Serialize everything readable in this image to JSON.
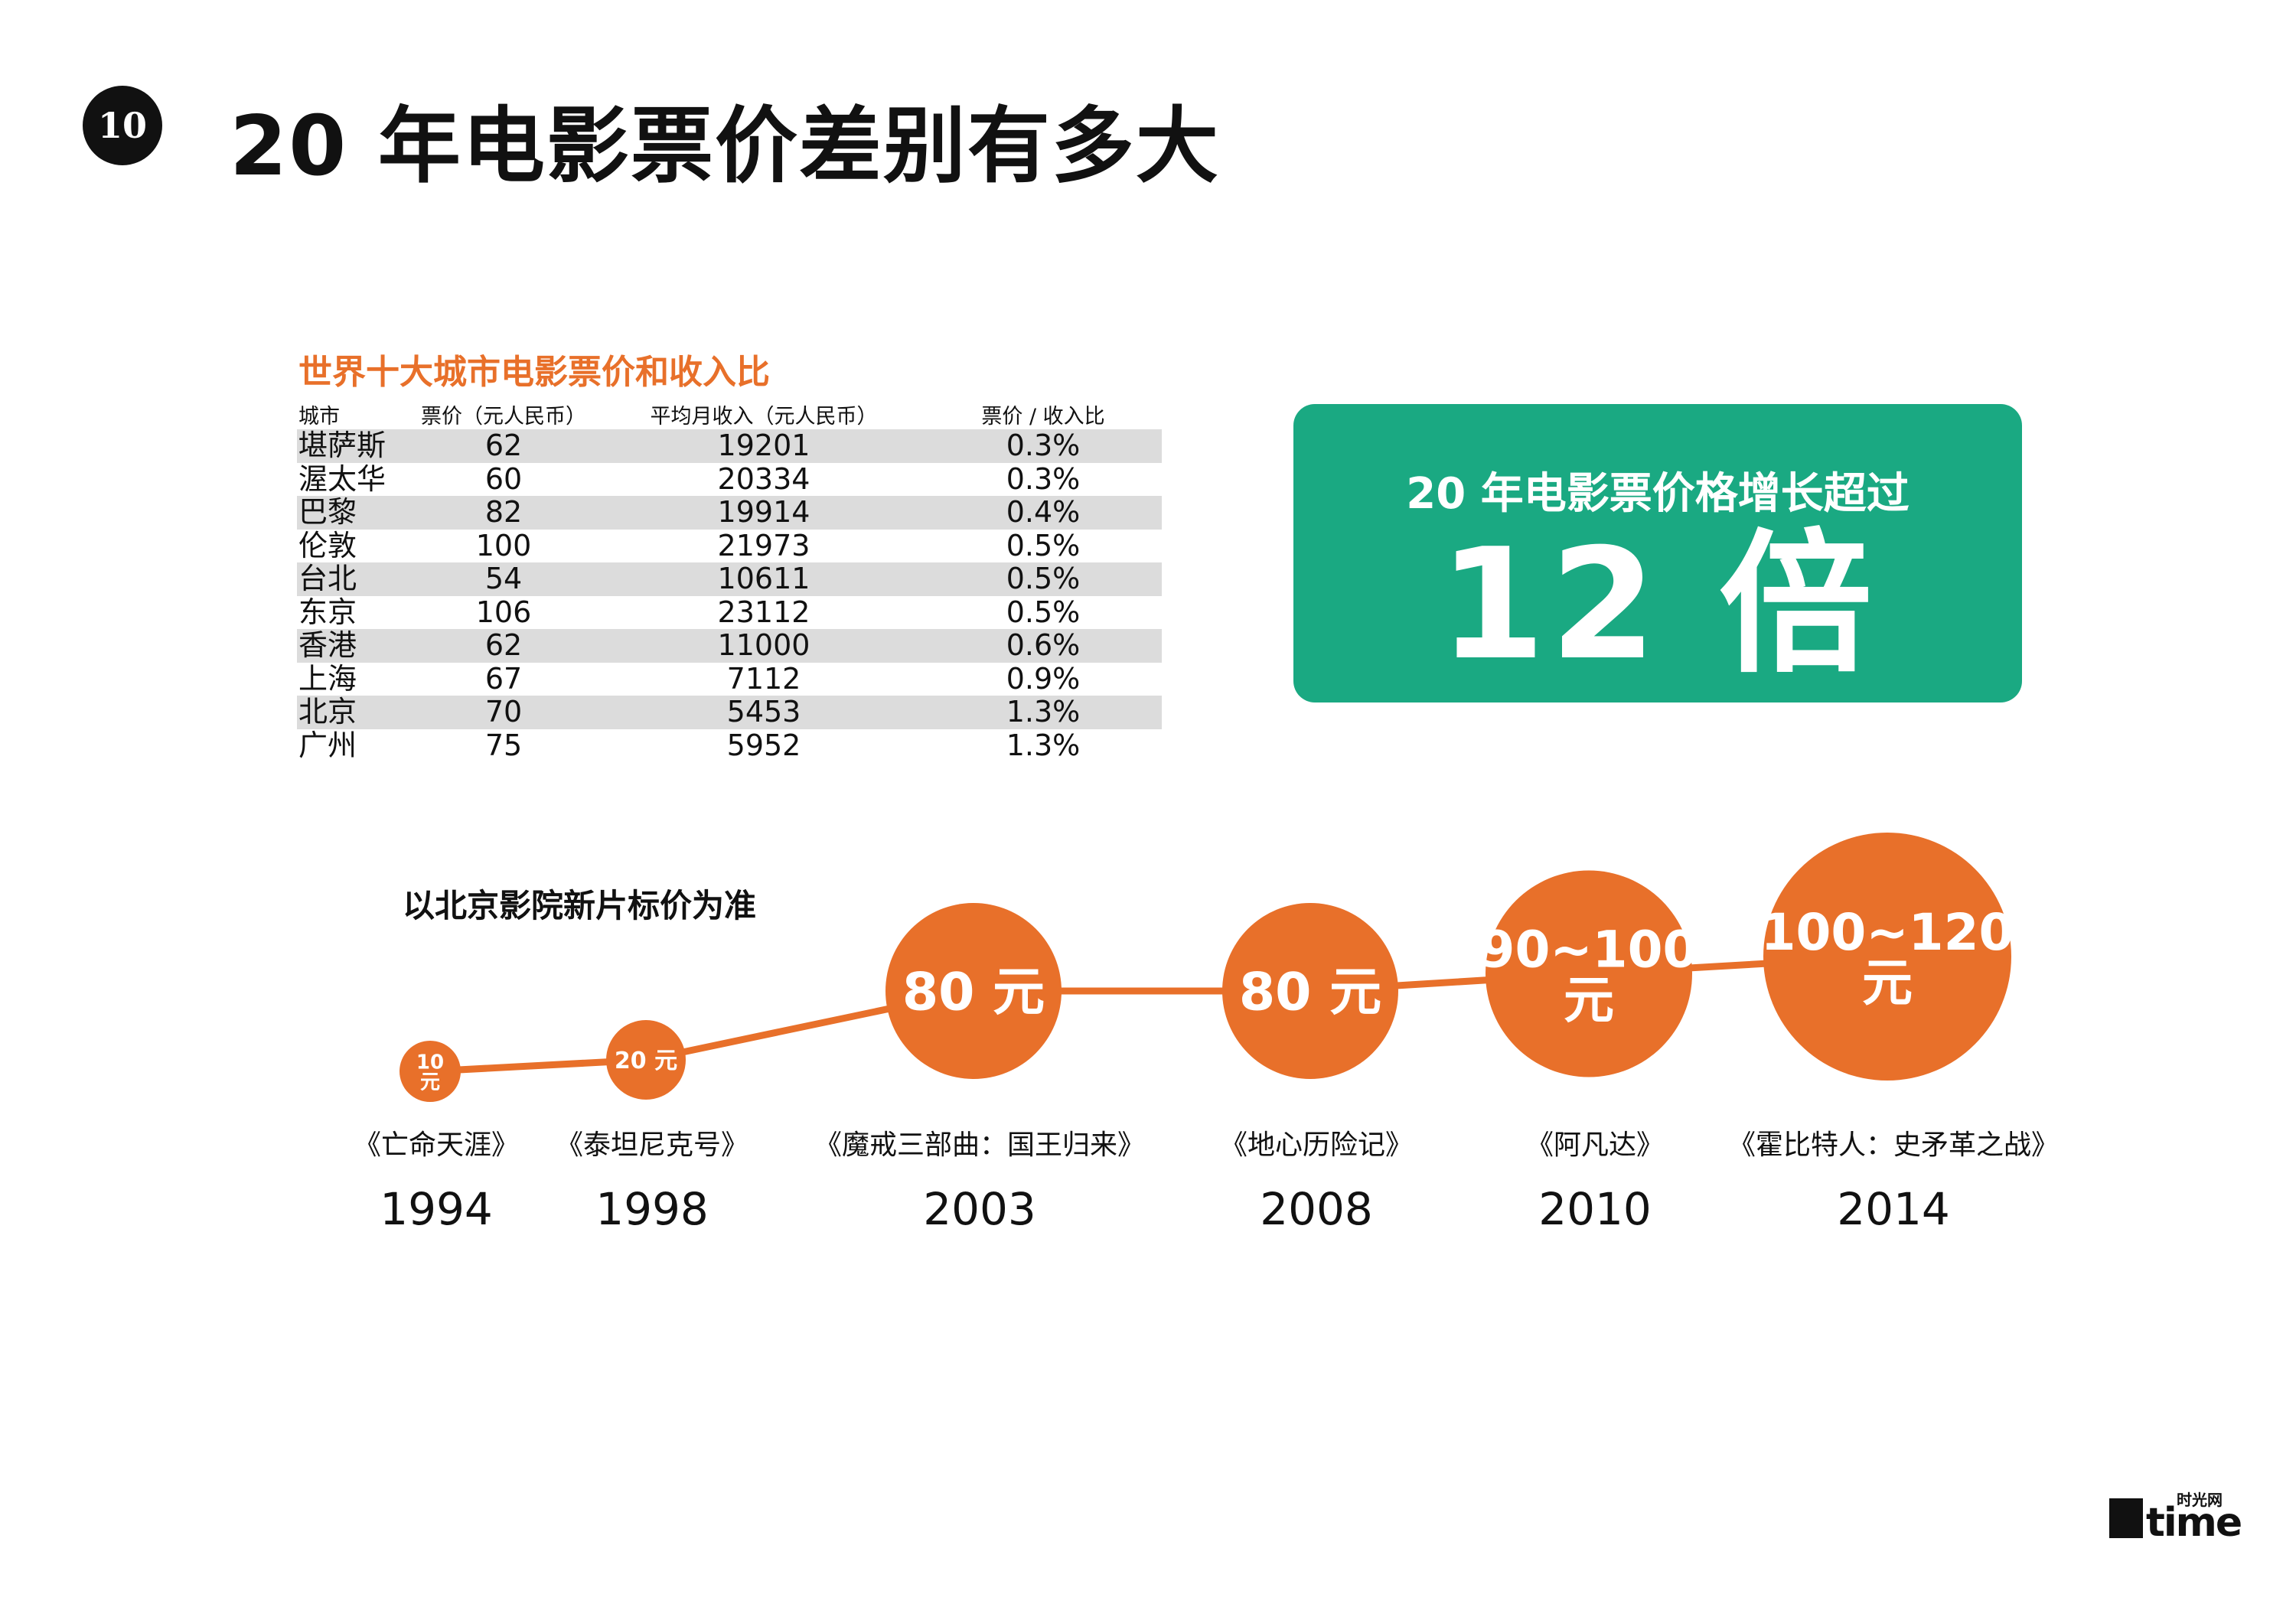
{
  "header": {
    "badge": "10",
    "title": "20 年电影票价差别有多大"
  },
  "table": {
    "title": "世界十大城市电影票价和收入比",
    "columns": [
      "城市",
      "票价（元人民币）",
      "平均月收入（元人民币）",
      "票价 / 收入比"
    ],
    "rows": [
      [
        "堪萨斯",
        "62",
        "19201",
        "0.3%"
      ],
      [
        "渥太华",
        "60",
        "20334",
        "0.3%"
      ],
      [
        "巴黎",
        "82",
        "19914",
        "0.4%"
      ],
      [
        "伦敦",
        "100",
        "21973",
        "0.5%"
      ],
      [
        "台北",
        "54",
        "10611",
        "0.5%"
      ],
      [
        "东京",
        "106",
        "23112",
        "0.5%"
      ],
      [
        "香港",
        "62",
        "11000",
        "0.6%"
      ],
      [
        "上海",
        "67",
        "7112",
        "0.9%"
      ],
      [
        "北京",
        "70",
        "5453",
        "1.3%"
      ],
      [
        "广州",
        "75",
        "5952",
        "1.3%"
      ]
    ]
  },
  "highlight": {
    "line": "20 年电影票价格增长超过",
    "big": "12 倍"
  },
  "timeline": {
    "title": "以北京影院新片标价为准"
  },
  "colors": {
    "orange": "#e8702a",
    "green": "#1aa982",
    "row_shade": "#dcdcdc"
  },
  "logo": {
    "text": "time",
    "small": "时光网"
  },
  "chart_data": {
    "type": "line",
    "title": "以北京影院新片标价为准",
    "x": [
      "1994",
      "1998",
      "2003",
      "2008",
      "2010",
      "2014"
    ],
    "films": [
      "《亡命天涯》",
      "《泰坦尼克号》",
      "《魔戒三部曲：国王归来》",
      "《地心历险记》",
      "《阿凡达》",
      "《霍比特人：史矛革之战》"
    ],
    "labels": [
      [
        "10",
        "元"
      ],
      [
        "20 元"
      ],
      [
        "80 元"
      ],
      [
        "80 元"
      ],
      [
        "90~100",
        "元"
      ],
      [
        "100~120",
        "元"
      ]
    ],
    "values": [
      10,
      20,
      80,
      80,
      95,
      110
    ]
  }
}
